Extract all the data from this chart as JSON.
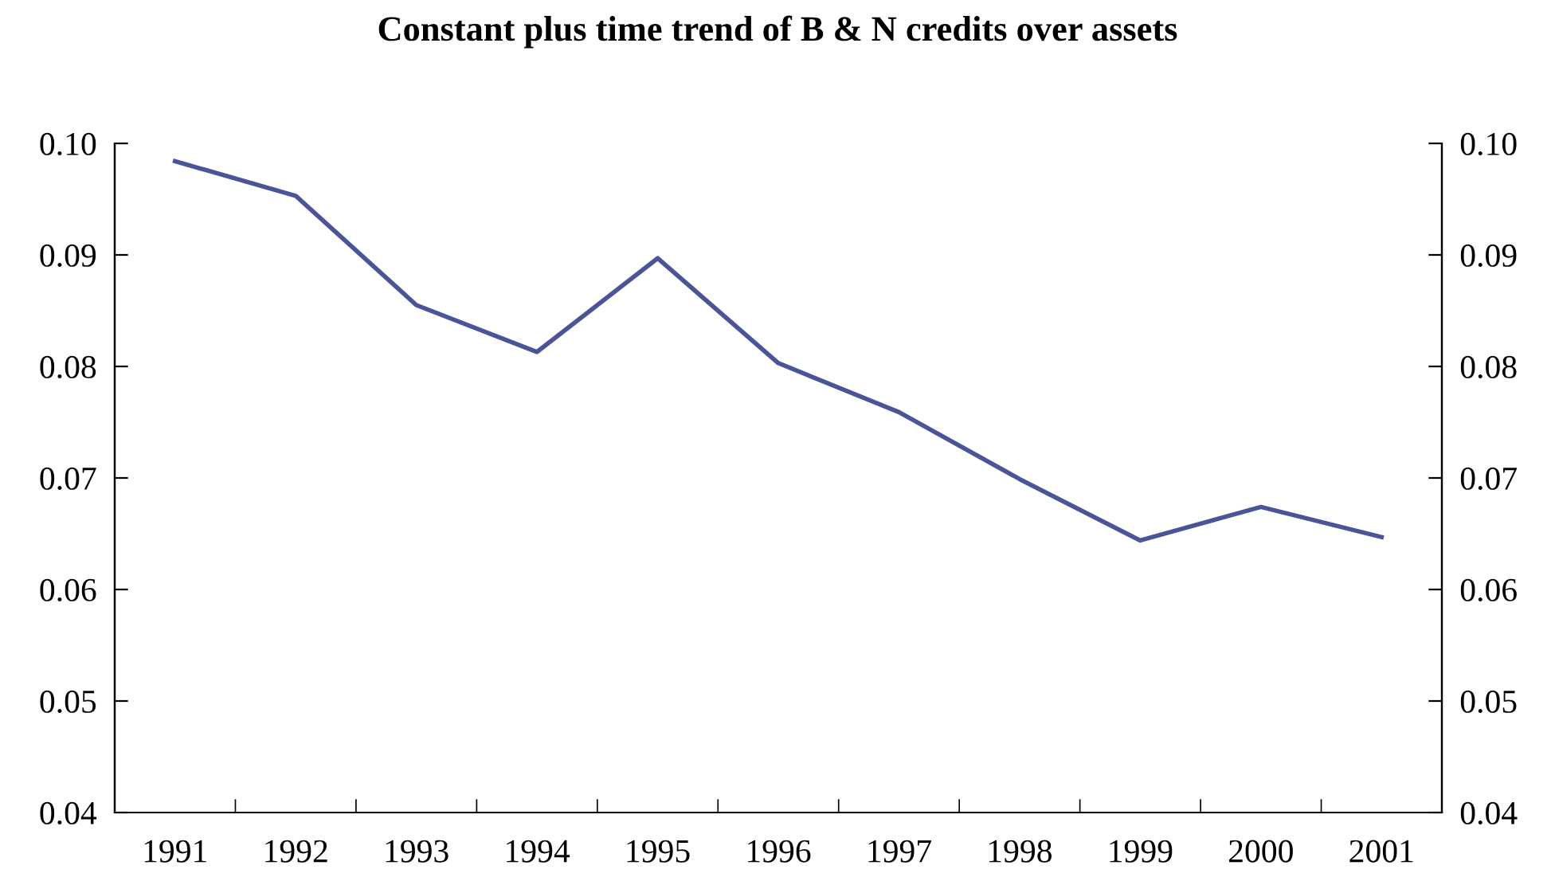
{
  "chart_data": {
    "type": "line",
    "title": "Constant plus time trend of B & N credits over assets",
    "categories": [
      "1991",
      "1992",
      "1993",
      "1994",
      "1995",
      "1996",
      "1997",
      "1998",
      "1999",
      "2000",
      "2001"
    ],
    "series": [
      {
        "color": "#4a5499",
        "values": [
          0.0984,
          0.0953,
          0.0855,
          0.0813,
          0.0897,
          0.0803,
          0.0759,
          0.0699,
          0.0644,
          0.0674,
          0.0647
        ]
      }
    ],
    "ylim": [
      0.04,
      0.1
    ],
    "yticks": [
      {
        "value": 0.04,
        "label": "0.04"
      },
      {
        "value": 0.05,
        "label": "0.05"
      },
      {
        "value": 0.06,
        "label": "0.06"
      },
      {
        "value": 0.07,
        "label": "0.07"
      },
      {
        "value": 0.08,
        "label": "0.08"
      },
      {
        "value": 0.09,
        "label": "0.09"
      },
      {
        "value": 0.1,
        "label": "0.10"
      }
    ],
    "y2lim": [
      0.04,
      0.1
    ],
    "y2ticks": [
      {
        "value": 0.04,
        "label": "0.04"
      },
      {
        "value": 0.05,
        "label": "0.05"
      },
      {
        "value": 0.06,
        "label": "0.06"
      },
      {
        "value": 0.07,
        "label": "0.07"
      },
      {
        "value": 0.08,
        "label": "0.08"
      },
      {
        "value": 0.09,
        "label": "0.09"
      },
      {
        "value": 0.1,
        "label": "0.10"
      }
    ],
    "grid": false,
    "legend": false,
    "marker": "none",
    "line_style": "solid"
  }
}
